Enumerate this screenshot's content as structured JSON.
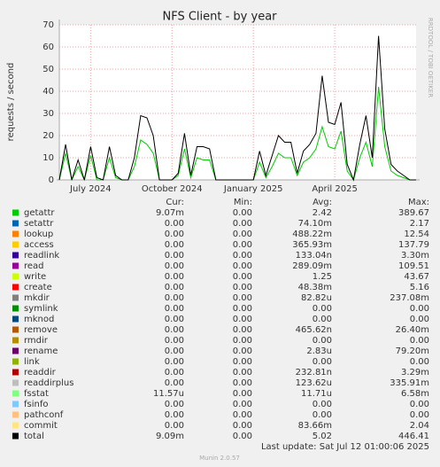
{
  "chart_data": {
    "type": "line",
    "title": "NFS Client - by year",
    "y_label": "requests / second",
    "side_label": "RRDTOOL / TOBI OETIKER",
    "categories": [
      null,
      null,
      null,
      null,
      null,
      "July 2024",
      null,
      null,
      null,
      null,
      null,
      null,
      null,
      null,
      null,
      null,
      null,
      null,
      "October 2024",
      null,
      null,
      null,
      null,
      null,
      null,
      null,
      null,
      null,
      null,
      null,
      null,
      "January 2025",
      null,
      null,
      null,
      null,
      null,
      null,
      null,
      null,
      null,
      null,
      null,
      null,
      "April 2025",
      null,
      null,
      null,
      null,
      null,
      null,
      null,
      null,
      null,
      null,
      null,
      null,
      null
    ],
    "ylim": [
      0,
      70
    ],
    "yticks": [
      0,
      10,
      20,
      30,
      40,
      50,
      60,
      70
    ],
    "grid": true,
    "legend_columns": [
      "Cur:",
      "Min:",
      "Avg:",
      "Max:"
    ],
    "series": [
      {
        "name": "getattr",
        "color": "#00cc00",
        "cur": "9.07m",
        "min": "0.00",
        "avg": "2.42",
        "max": "389.67",
        "values": [
          0,
          12,
          0,
          6,
          0,
          11,
          0,
          0,
          10,
          1,
          0,
          0,
          6,
          18,
          16,
          12,
          0,
          0,
          0,
          2,
          14,
          1,
          10,
          9,
          9,
          0,
          0,
          0,
          0,
          0,
          0,
          0,
          8,
          1,
          6,
          12,
          10,
          10,
          2,
          8,
          10,
          14,
          24,
          15,
          14,
          22,
          4,
          0,
          10,
          17,
          6,
          42,
          15,
          4,
          2,
          1,
          0,
          0
        ]
      },
      {
        "name": "setattr",
        "color": "#0066b3",
        "cur": "0.00",
        "min": "0.00",
        "avg": "74.10m",
        "max": "2.17"
      },
      {
        "name": "lookup",
        "color": "#ff8000",
        "cur": "0.00",
        "min": "0.00",
        "avg": "488.22m",
        "max": "12.54"
      },
      {
        "name": "access",
        "color": "#ffcc00",
        "cur": "0.00",
        "min": "0.00",
        "avg": "365.93m",
        "max": "137.79"
      },
      {
        "name": "readlink",
        "color": "#330099",
        "cur": "0.00",
        "min": "0.00",
        "avg": "133.04n",
        "max": "3.30m"
      },
      {
        "name": "read",
        "color": "#990099",
        "cur": "0.00",
        "min": "0.00",
        "avg": "289.09m",
        "max": "109.51"
      },
      {
        "name": "write",
        "color": "#ccff00",
        "cur": "0.00",
        "min": "0.00",
        "avg": "1.25",
        "max": "43.67"
      },
      {
        "name": "create",
        "color": "#ff0000",
        "cur": "0.00",
        "min": "0.00",
        "avg": "48.38m",
        "max": "5.16"
      },
      {
        "name": "mkdir",
        "color": "#808080",
        "cur": "0.00",
        "min": "0.00",
        "avg": "82.82u",
        "max": "237.08m"
      },
      {
        "name": "symlink",
        "color": "#008f00",
        "cur": "0.00",
        "min": "0.00",
        "avg": "0.00",
        "max": "0.00"
      },
      {
        "name": "mknod",
        "color": "#00487d",
        "cur": "0.00",
        "min": "0.00",
        "avg": "0.00",
        "max": "0.00"
      },
      {
        "name": "remove",
        "color": "#b35a00",
        "cur": "0.00",
        "min": "0.00",
        "avg": "465.62n",
        "max": "26.40m"
      },
      {
        "name": "rmdir",
        "color": "#b38f00",
        "cur": "0.00",
        "min": "0.00",
        "avg": "0.00",
        "max": "0.00"
      },
      {
        "name": "rename",
        "color": "#6b006b",
        "cur": "0.00",
        "min": "0.00",
        "avg": "2.83u",
        "max": "79.20m"
      },
      {
        "name": "link",
        "color": "#8fb300",
        "cur": "0.00",
        "min": "0.00",
        "avg": "0.00",
        "max": "0.00"
      },
      {
        "name": "readdir",
        "color": "#b30000",
        "cur": "0.00",
        "min": "0.00",
        "avg": "232.81n",
        "max": "3.29m"
      },
      {
        "name": "readdirplus",
        "color": "#bebebe",
        "cur": "0.00",
        "min": "0.00",
        "avg": "123.62u",
        "max": "335.91m"
      },
      {
        "name": "fsstat",
        "color": "#80ff80",
        "cur": "11.57u",
        "min": "0.00",
        "avg": "11.71u",
        "max": "6.58m"
      },
      {
        "name": "fsinfo",
        "color": "#80c9ff",
        "cur": "0.00",
        "min": "0.00",
        "avg": "0.00",
        "max": "0.00"
      },
      {
        "name": "pathconf",
        "color": "#ffc080",
        "cur": "0.00",
        "min": "0.00",
        "avg": "0.00",
        "max": "0.00"
      },
      {
        "name": "commit",
        "color": "#ffe680",
        "cur": "0.00",
        "min": "0.00",
        "avg": "83.66m",
        "max": "2.04"
      },
      {
        "name": "total",
        "color": "#000000",
        "cur": "9.09m",
        "min": "0.00",
        "avg": "5.02",
        "max": "446.41",
        "values": [
          0,
          16,
          0,
          9,
          0,
          15,
          1,
          0,
          15,
          2,
          0,
          0,
          10,
          29,
          28,
          20,
          0,
          0,
          0,
          3,
          21,
          2,
          15,
          15,
          14,
          0,
          0,
          0,
          0,
          0,
          0,
          0,
          13,
          2,
          11,
          20,
          17,
          17,
          3,
          13,
          16,
          21,
          47,
          26,
          25,
          35,
          7,
          0,
          16,
          29,
          10,
          65,
          23,
          7,
          4,
          2,
          0,
          0
        ]
      }
    ],
    "last_update": "Last update: Sat Jul 12 01:00:06 2025",
    "version": "Munin 2.0.57"
  }
}
